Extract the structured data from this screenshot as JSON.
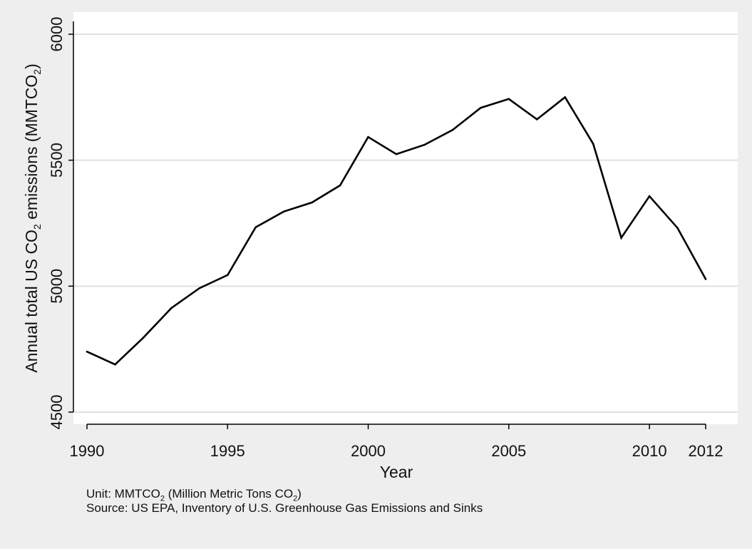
{
  "chart_data": {
    "type": "line",
    "x": [
      1990,
      1991,
      1992,
      1993,
      1994,
      1995,
      1996,
      1997,
      1998,
      1999,
      2000,
      2001,
      2002,
      2003,
      2004,
      2005,
      2006,
      2007,
      2008,
      2009,
      2010,
      2011,
      2012
    ],
    "series": [
      {
        "values": [
          4740,
          4689,
          4795,
          4913,
          4992,
          5044,
          5234,
          5296,
          5332,
          5400,
          5592,
          5524,
          5561,
          5620,
          5708,
          5743,
          5662,
          5750,
          5565,
          5192,
          5357,
          5231,
          5028
        ]
      }
    ],
    "xlabel": "Year",
    "ylabel": {
      "prefix": "Annual total US CO",
      "sub": "2",
      "mid": " emissions (MMTCO",
      "sub2": "2",
      "suffix": ")"
    },
    "x_ticks": [
      1990,
      1995,
      2000,
      2005,
      2010,
      2012
    ],
    "y_ticks": [
      4500,
      5000,
      5500,
      6000
    ],
    "xlim": [
      1990,
      2012
    ],
    "ylim": [
      4500,
      6000
    ],
    "grid": "horizontal",
    "line_color": "#000000",
    "plot_background": "#ffffff",
    "page_background": "#eeeeee",
    "grid_color": "#e0e0e0"
  },
  "notes": {
    "unit_prefix": "Unit: MMTCO",
    "unit_sub": "2",
    "unit_mid": " (Million Metric Tons CO",
    "unit_sub2": "2",
    "unit_suffix": ")",
    "source": "Source: US EPA, Inventory of U.S. Greenhouse Gas Emissions and Sinks"
  }
}
